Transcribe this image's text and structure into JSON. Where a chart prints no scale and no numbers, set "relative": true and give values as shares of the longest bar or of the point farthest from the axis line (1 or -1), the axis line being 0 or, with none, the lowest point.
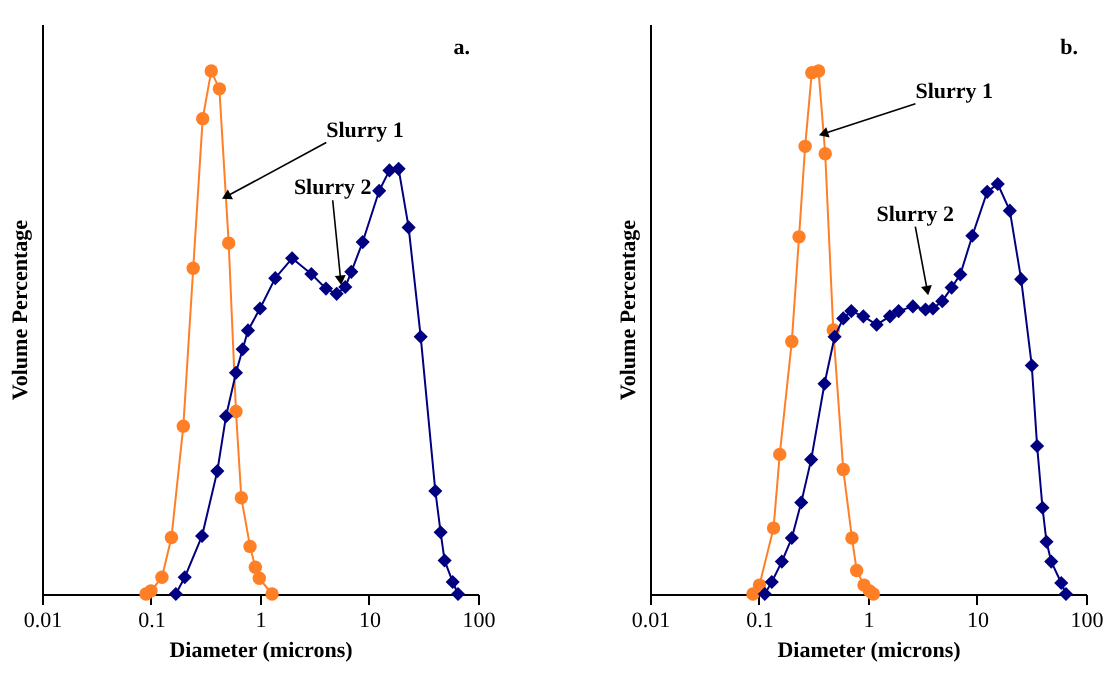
{
  "chart_data": [
    {
      "type": "line",
      "xlabel": "Diameter (microns)",
      "ylabel": "Volume Percentage",
      "log": "x",
      "xlim": [
        0.01,
        100
      ],
      "xticks": [
        0.01,
        0.1,
        1,
        10,
        100
      ],
      "relative": true,
      "grid": false,
      "annotations": [
        "a.",
        {
          "text": "Slurry 1",
          "x": 0.49,
          "y": 0.76
        },
        {
          "text": "Slurry 2",
          "x": 5.5,
          "y": 0.6
        }
      ],
      "series": [
        {
          "color": "#ff7f27",
          "marker": "circle",
          "x": [
            0.09,
            0.1,
            0.126,
            0.154,
            0.198,
            0.244,
            0.298,
            0.357,
            0.424,
            0.516,
            0.602,
            0.674,
            0.81,
            0.906,
            0.986,
            1.29
          ],
          "values": [
            0,
            0.006,
            0.032,
            0.108,
            0.321,
            0.623,
            0.909,
            1,
            0.966,
            0.671,
            0.349,
            0.184,
            0.091,
            0.051,
            0.03,
            0
          ]
        },
        {
          "color": "#000080",
          "marker": "diamond",
          "x": [
            0.169,
            0.204,
            0.294,
            0.406,
            0.488,
            0.602,
            0.693,
            0.776,
            1.0,
            1.38,
            1.97,
            2.96,
            4.03,
            5.05,
            6.06,
            6.88,
            8.75,
            12.4,
            15.4,
            18.7,
            23.1,
            29.8,
            40.6,
            45.4,
            49.4,
            58.6,
            65.6
          ],
          "values": [
            0,
            0.032,
            0.111,
            0.235,
            0.34,
            0.423,
            0.468,
            0.504,
            0.546,
            0.604,
            0.642,
            0.612,
            0.584,
            0.574,
            0.587,
            0.616,
            0.673,
            0.771,
            0.81,
            0.813,
            0.701,
            0.492,
            0.197,
            0.118,
            0.064,
            0.023,
            0
          ]
        }
      ]
    },
    {
      "type": "line",
      "xlabel": "Diameter (microns)",
      "ylabel": "Volume Percentage",
      "log": "x",
      "xlim": [
        0.01,
        100
      ],
      "xticks": [
        0.01,
        0.1,
        1,
        10,
        100
      ],
      "relative": true,
      "grid": false,
      "annotations": [
        "b.",
        {
          "text": "Slurry 1",
          "x": 0.39,
          "y": 0.88
        },
        {
          "text": "Slurry 2",
          "x": 3.5,
          "y": 0.58
        }
      ],
      "series": [
        {
          "color": "#ff7f27",
          "marker": "circle",
          "x": [
            0.088,
            0.101,
            0.136,
            0.155,
            0.2,
            0.233,
            0.265,
            0.305,
            0.352,
            0.405,
            0.48,
            0.593,
            0.713,
            0.787,
            0.919,
            1.03,
            1.12
          ],
          "values": [
            0,
            0.017,
            0.126,
            0.267,
            0.483,
            0.683,
            0.856,
            0.997,
            1,
            0.842,
            0.505,
            0.238,
            0.107,
            0.045,
            0.017,
            0.006,
            0
          ]
        },
        {
          "color": "#000080",
          "marker": "diamond",
          "x": [
            0.113,
            0.131,
            0.162,
            0.2,
            0.244,
            0.301,
            0.399,
            0.494,
            0.593,
            0.703,
            0.906,
            1.2,
            1.59,
            1.91,
            2.58,
            3.37,
            3.94,
            4.8,
            5.85,
            7.03,
            9.06,
            12.4,
            15.5,
            20,
            25.4,
            31.8,
            35.6,
            39.9,
            43.4,
            48,
            59.3,
            65.5
          ],
          "values": [
            0,
            0.023,
            0.062,
            0.107,
            0.175,
            0.257,
            0.402,
            0.492,
            0.527,
            0.541,
            0.531,
            0.515,
            0.531,
            0.541,
            0.55,
            0.544,
            0.546,
            0.56,
            0.586,
            0.611,
            0.685,
            0.769,
            0.784,
            0.733,
            0.602,
            0.437,
            0.283,
            0.165,
            0.1,
            0.062,
            0.021,
            0
          ]
        }
      ]
    }
  ]
}
